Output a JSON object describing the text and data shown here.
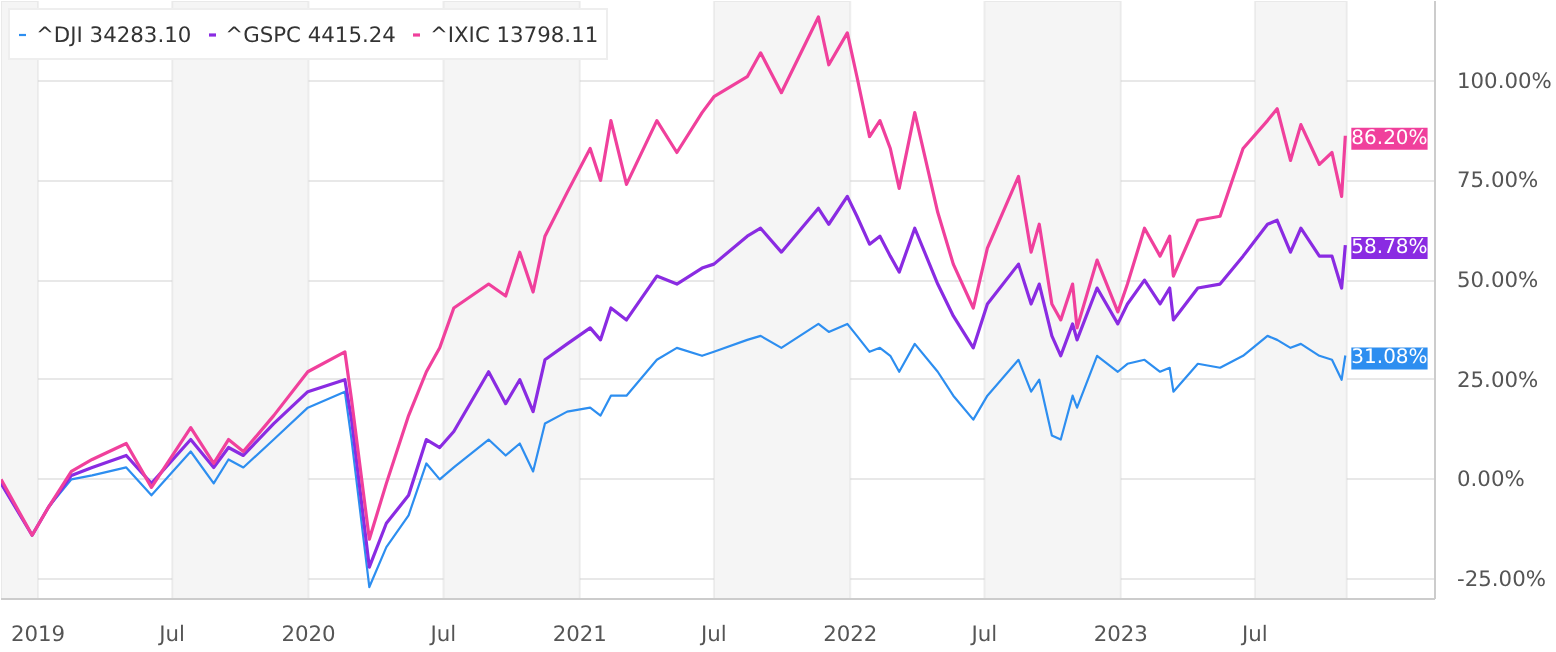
{
  "chart_data": {
    "type": "line",
    "x": [
      "2018-11-12",
      "2018-12-24",
      "2019-01-15",
      "2019-02-15",
      "2019-03-15",
      "2019-04-30",
      "2019-06-03",
      "2019-07-26",
      "2019-08-26",
      "2019-09-15",
      "2019-10-05",
      "2019-11-15",
      "2019-12-31",
      "2020-02-19",
      "2020-02-28",
      "2020-03-23",
      "2020-04-15",
      "2020-05-15",
      "2020-06-08",
      "2020-06-26",
      "2020-07-15",
      "2020-08-31",
      "2020-09-23",
      "2020-10-12",
      "2020-10-30",
      "2020-11-15",
      "2020-12-15",
      "2021-01-15",
      "2021-01-29",
      "2021-02-12",
      "2021-03-05",
      "2021-04-15",
      "2021-05-12",
      "2021-06-15",
      "2021-07-01",
      "2021-08-15",
      "2021-09-02",
      "2021-09-30",
      "2021-11-19",
      "2021-12-03",
      "2021-12-28",
      "2022-01-10",
      "2022-01-27",
      "2022-02-10",
      "2022-02-24",
      "2022-03-08",
      "2022-03-29",
      "2022-04-29",
      "2022-05-20",
      "2022-06-16",
      "2022-07-05",
      "2022-08-16",
      "2022-09-02",
      "2022-09-13",
      "2022-09-30",
      "2022-10-12",
      "2022-10-28",
      "2022-11-03",
      "2022-11-30",
      "2022-12-28",
      "2023-01-10",
      "2023-02-02",
      "2023-02-23",
      "2023-03-08",
      "2023-03-13",
      "2023-04-15",
      "2023-05-15",
      "2023-06-15",
      "2023-07-18",
      "2023-07-31",
      "2023-08-18",
      "2023-09-01",
      "2023-09-26",
      "2023-10-13",
      "2023-10-26",
      "2023-10-31"
    ],
    "series": [
      {
        "name": "^DJI 34283.10",
        "color": "#2d8ef0",
        "values": [
          -1,
          -14,
          -7,
          0,
          1,
          3,
          -4,
          7,
          -1,
          5,
          3,
          10,
          18,
          22,
          10,
          -27,
          -17,
          -9,
          4,
          0,
          3,
          10,
          6,
          9,
          2,
          14,
          17,
          18,
          16,
          21,
          21,
          30,
          33,
          31,
          32,
          35,
          36,
          33,
          39,
          37,
          39,
          36,
          32,
          33,
          31,
          27,
          34,
          27,
          21,
          15,
          21,
          30,
          22,
          25,
          11,
          10,
          21,
          18,
          31,
          27,
          29,
          30,
          27,
          28,
          22,
          29,
          28,
          31,
          36,
          35,
          33,
          34,
          31,
          30,
          25,
          31.08
        ]
      },
      {
        "name": "^GSPC 4415.24",
        "color": "#8a2be2",
        "values": [
          -1,
          -14,
          -7,
          1,
          3,
          6,
          -1,
          10,
          3,
          8,
          6,
          14,
          22,
          25,
          15,
          -22,
          -11,
          -4,
          10,
          8,
          12,
          27,
          19,
          25,
          17,
          30,
          34,
          38,
          35,
          43,
          40,
          51,
          49,
          53,
          54,
          61,
          63,
          57,
          68,
          64,
          71,
          66,
          59,
          61,
          56,
          52,
          63,
          49,
          41,
          33,
          44,
          54,
          44,
          49,
          36,
          31,
          39,
          35,
          48,
          39,
          44,
          50,
          44,
          48,
          40,
          48,
          49,
          56,
          64,
          65,
          57,
          63,
          56,
          56,
          48,
          58.78
        ]
      },
      {
        "name": "^IXIC 13798.11",
        "color": "#f0409c",
        "values": [
          0,
          -14,
          -7,
          2,
          5,
          9,
          -2,
          13,
          4,
          10,
          7,
          16,
          27,
          32,
          20,
          -15,
          -1,
          16,
          27,
          33,
          43,
          49,
          46,
          57,
          47,
          61,
          72,
          83,
          75,
          90,
          74,
          90,
          82,
          92,
          96,
          101,
          107,
          97,
          116,
          104,
          112,
          101,
          86,
          90,
          83,
          73,
          92,
          67,
          54,
          43,
          58,
          76,
          57,
          64,
          44,
          40,
          49,
          38,
          55,
          42,
          49,
          63,
          56,
          61,
          51,
          65,
          66,
          83,
          90,
          93,
          80,
          89,
          79,
          82,
          71,
          86.2
        ]
      }
    ],
    "xlim": [
      "2018-11-12",
      "2024-02-29"
    ],
    "xticks": [
      {
        "value": "2019-01-01",
        "label": "2019"
      },
      {
        "value": "2019-07-01",
        "label": "Jul"
      },
      {
        "value": "2020-01-01",
        "label": "2020"
      },
      {
        "value": "2020-07-01",
        "label": "Jul"
      },
      {
        "value": "2021-01-01",
        "label": "2021"
      },
      {
        "value": "2021-07-01",
        "label": "Jul"
      },
      {
        "value": "2022-01-01",
        "label": "2022"
      },
      {
        "value": "2022-07-01",
        "label": "Jul"
      },
      {
        "value": "2023-01-01",
        "label": "2023"
      },
      {
        "value": "2023-07-01",
        "label": "Jul"
      }
    ],
    "ylim": [
      -30,
      120
    ],
    "yticks": [
      {
        "value": -25,
        "label": "-25.00%"
      },
      {
        "value": 0,
        "label": "0.00%"
      },
      {
        "value": 25,
        "label": "25.00%"
      },
      {
        "value": 50,
        "label": "50.00%"
      },
      {
        "value": 75,
        "label": "75.00%"
      },
      {
        "value": 100,
        "label": "100.00%"
      }
    ],
    "bands": [
      {
        "axis": "x",
        "from": "2018-11-12",
        "to": "2019-01-01",
        "color": "#f5f5f5"
      },
      {
        "axis": "x",
        "from": "2019-07-01",
        "to": "2020-01-01",
        "color": "#f5f5f5"
      },
      {
        "axis": "x",
        "from": "2020-07-01",
        "to": "2021-01-01",
        "color": "#f5f5f5"
      },
      {
        "axis": "x",
        "from": "2021-07-01",
        "to": "2022-01-01",
        "color": "#f5f5f5"
      },
      {
        "axis": "x",
        "from": "2022-07-01",
        "to": "2023-01-01",
        "color": "#f5f5f5"
      },
      {
        "axis": "x",
        "from": "2023-07-01",
        "to": "2023-11-02",
        "color": "#f5f5f5"
      }
    ],
    "annotations": [
      {
        "text": "86.20%",
        "x": "2023-10-31",
        "y": 86.2
      },
      {
        "text": "58.78%",
        "x": "2023-10-31",
        "y": 58.78
      },
      {
        "text": "31.08%",
        "x": "2023-10-31",
        "y": 31.08
      }
    ],
    "grid": "y",
    "legend": "top left",
    "marker": "none",
    "line_style": "solid"
  }
}
